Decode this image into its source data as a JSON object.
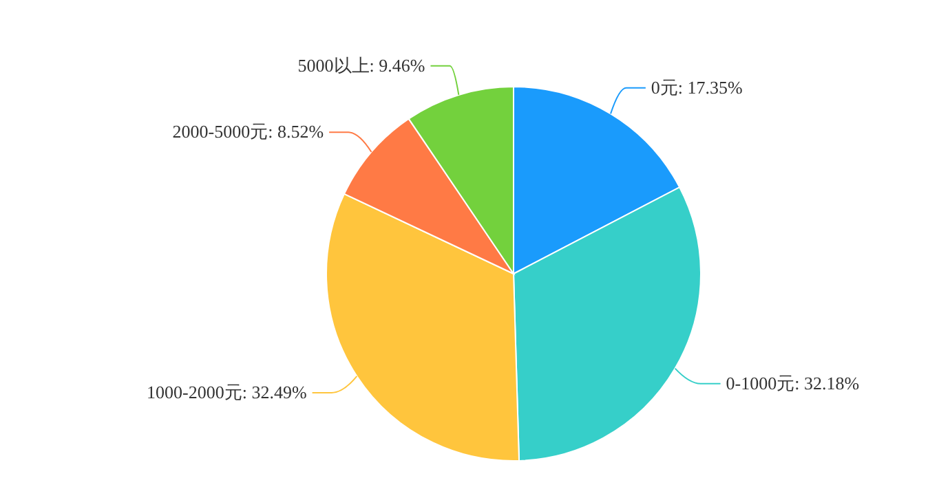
{
  "chart_data": {
    "type": "pie",
    "categories": [
      "0元",
      "0-1000元",
      "1000-2000元",
      "2000-5000元",
      "5000以上"
    ],
    "values": [
      17.35,
      32.18,
      32.49,
      8.52,
      9.46
    ],
    "colors": [
      "#1a9bfc",
      "#36cfc9",
      "#ffc53d",
      "#ff7a45",
      "#73d13d"
    ],
    "value_labels": [
      "17.35%",
      "32.18%",
      "32.49%",
      "8.52%",
      "9.46%"
    ]
  }
}
